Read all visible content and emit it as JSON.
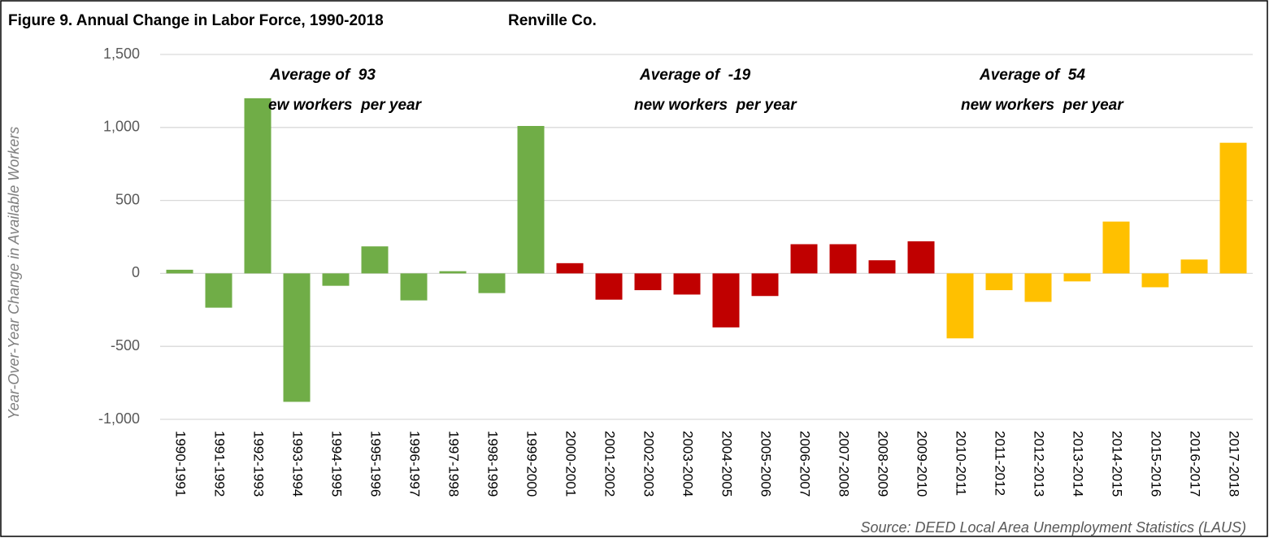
{
  "chart_data": {
    "type": "bar",
    "title": "Figure 9. Annual Change in Labor Force, 1990-2018",
    "subtitle": "Renville Co.",
    "y_label": "Year-Over-Year Change in Available Workers",
    "source": "Source: DEED Local Area Unemployment Statistics (LAUS)",
    "annotations": [
      [
        "Average of  93",
        "ew workers  per year"
      ],
      [
        "Average of  -19",
        "new workers  per year"
      ],
      [
        "Average of  54",
        "new workers  per year"
      ]
    ],
    "categories": [
      "1990-1991",
      "1991-1992",
      "1992-1993",
      "1993-1994",
      "1994-1995",
      "1995-1996",
      "1996-1997",
      "1997-1998",
      "1998-1999",
      "1999-2000",
      "2000-2001",
      "2001-2002",
      "2002-2003",
      "2003-2004",
      "2004-2005",
      "2005-2006",
      "2006-2007",
      "2007-2008",
      "2008-2009",
      "2009-2010",
      "2010-2011",
      "2011-2012",
      "2012-2013",
      "2013-2014",
      "2014-2015",
      "2015-2016",
      "2016-2017",
      "2017-2018"
    ],
    "values": [
      25,
      -235,
      1200,
      -880,
      -85,
      185,
      -185,
      15,
      -135,
      1010,
      70,
      -180,
      -115,
      -145,
      -370,
      -155,
      200,
      200,
      90,
      220,
      -445,
      -115,
      -195,
      -55,
      355,
      -95,
      95,
      895
    ],
    "colors": [
      "#70ad47",
      "#70ad47",
      "#70ad47",
      "#70ad47",
      "#70ad47",
      "#70ad47",
      "#70ad47",
      "#70ad47",
      "#70ad47",
      "#70ad47",
      "#c00000",
      "#c00000",
      "#c00000",
      "#c00000",
      "#c00000",
      "#c00000",
      "#c00000",
      "#c00000",
      "#c00000",
      "#c00000",
      "#ffc000",
      "#ffc000",
      "#ffc000",
      "#ffc000",
      "#ffc000",
      "#ffc000",
      "#ffc000",
      "#ffc000"
    ],
    "ylim": [
      -1000,
      1500
    ],
    "yticks": [
      {
        "value": -1000,
        "label": "-1,000"
      },
      -500,
      0,
      500,
      {
        "value": 1000,
        "label": "1,000"
      },
      {
        "value": 1500,
        "label": "1,500"
      }
    ],
    "grid": true
  }
}
